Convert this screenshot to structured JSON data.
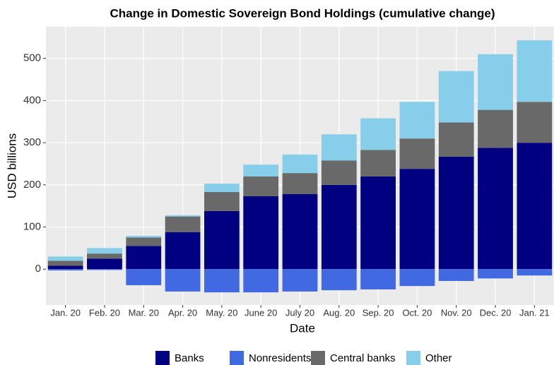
{
  "chart_data": {
    "type": "stacked_bar",
    "title": "Change in Domestic Sovereign Bond Holdings (cumulative change)",
    "x_label": "Date",
    "y_label": "USD billions",
    "categories": [
      "Jan. 20",
      "Feb. 20",
      "Mar. 20",
      "Apr. 20",
      "May. 20",
      "June 20",
      "July 20",
      "Aug. 20",
      "Sep. 20",
      "Oct. 20",
      "Nov. 20",
      "Dec. 20",
      "Jan. 21"
    ],
    "series": [
      {
        "name": "Banks",
        "color": "#000080",
        "values": [
          8,
          25,
          55,
          88,
          138,
          173,
          178,
          200,
          220,
          238,
          267,
          288,
          300
        ]
      },
      {
        "name": "Nonresidents",
        "color": "#4169e1",
        "values": [
          -3,
          -2,
          -38,
          -53,
          -55,
          -55,
          -53,
          -50,
          -48,
          -40,
          -28,
          -22,
          -15
        ]
      },
      {
        "name": "Central banks",
        "color": "#696969",
        "values": [
          12,
          12,
          20,
          37,
          45,
          47,
          50,
          58,
          63,
          72,
          81,
          90,
          97
        ]
      },
      {
        "name": "Other",
        "color": "#87ceeb",
        "values": [
          10,
          13,
          4,
          3,
          20,
          28,
          44,
          62,
          75,
          87,
          122,
          132,
          146
        ]
      }
    ],
    "ylim": [
      -85,
      575
    ],
    "yticks": [
      0,
      100,
      200,
      300,
      400,
      500
    ],
    "grid": true,
    "legend": "bottom"
  }
}
